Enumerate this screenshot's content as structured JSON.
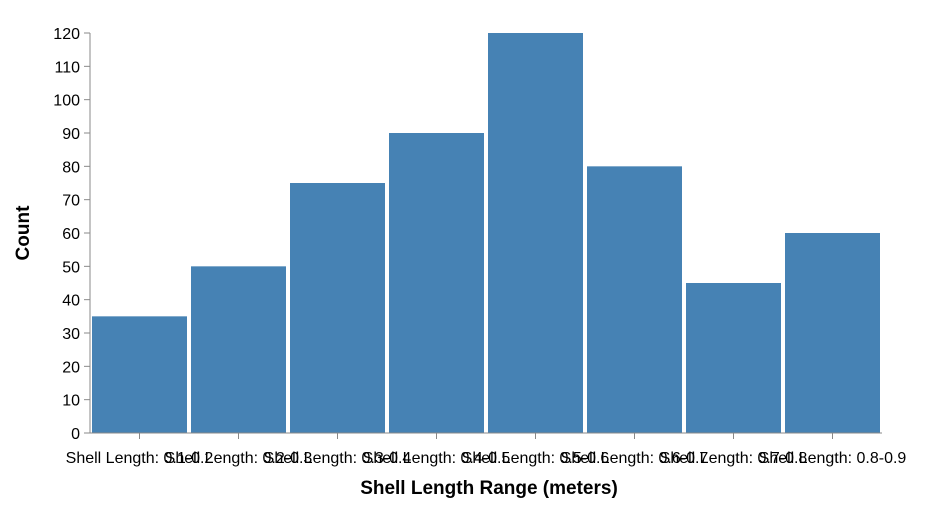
{
  "chart_data": {
    "type": "bar",
    "categories": [
      "Shell Length: 0.1-0.2",
      "Shell Length: 0.2-0.3",
      "Shell Length: 0.3-0.4",
      "Shell Length: 0.4-0.5",
      "Shell Length: 0.5-0.6",
      "Shell Length: 0.6-0.7",
      "Shell Length: 0.7-0.8",
      "Shell Length: 0.8-0.9"
    ],
    "values": [
      35,
      50,
      75,
      90,
      120,
      80,
      45,
      60
    ],
    "xlabel": "Shell Length Range (meters)",
    "ylabel": "Count",
    "ylim": [
      0,
      120
    ],
    "yticks": [
      0,
      10,
      20,
      30,
      40,
      50,
      60,
      70,
      80,
      90,
      100,
      110,
      120
    ],
    "bar_color": "#4682b4",
    "grid": false
  }
}
